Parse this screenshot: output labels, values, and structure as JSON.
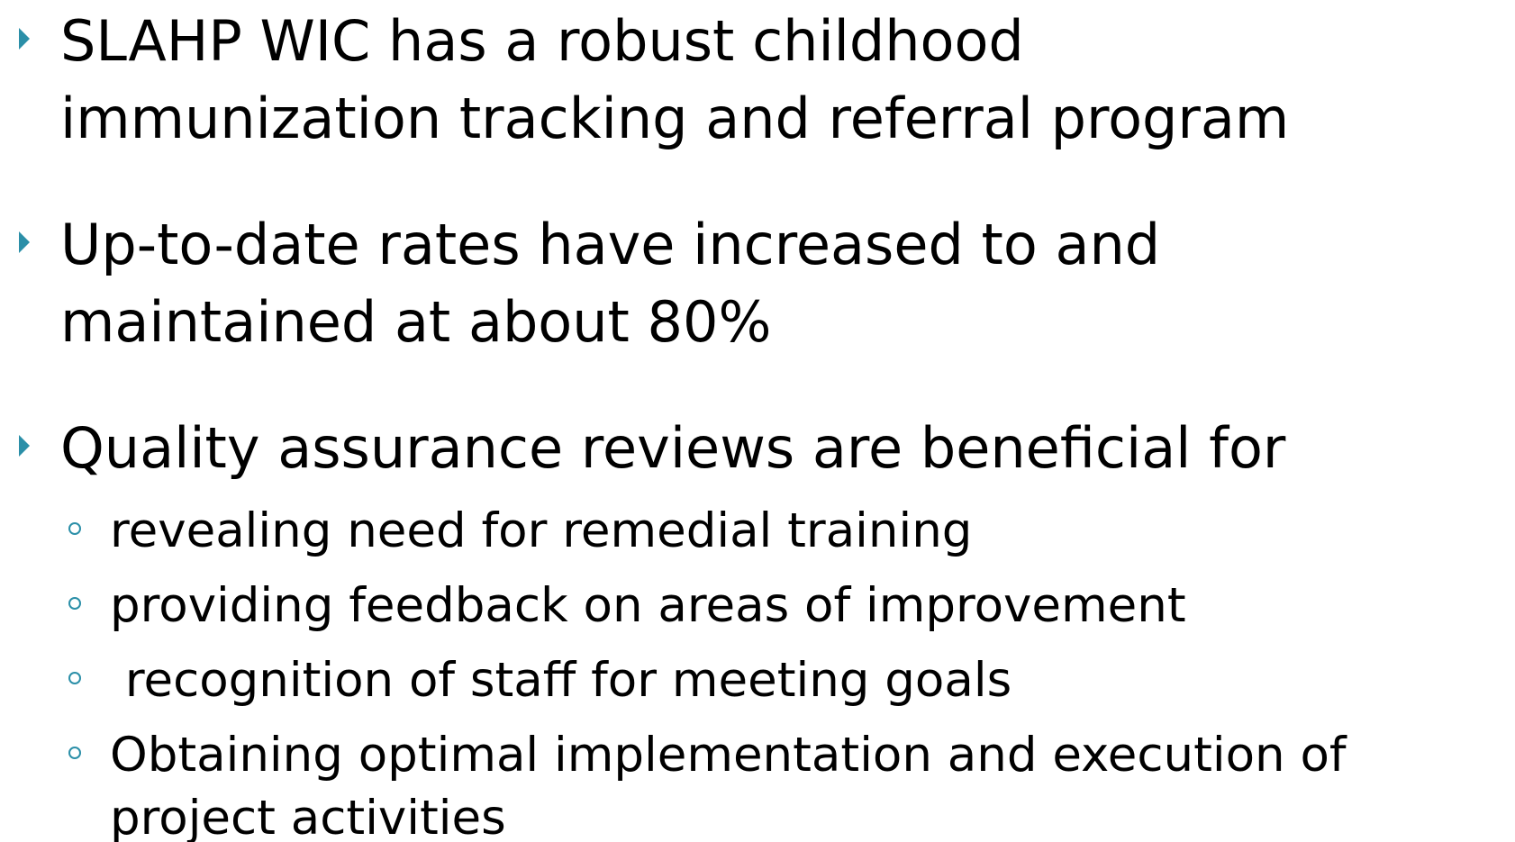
{
  "bullets": [
    {
      "lines": [
        "SLAHP WIC has a robust childhood",
        "immunization tracking and referral program"
      ]
    },
    {
      "lines": [
        "Up-to-date rates have increased to and",
        "maintained at about 80%"
      ]
    },
    {
      "lines": [
        "Quality assurance reviews are beneficial for"
      ],
      "sub_bullets": [
        {
          "lines": [
            "revealing need for remedial training"
          ]
        },
        {
          "lines": [
            "providing feedback on areas of improvement"
          ]
        },
        {
          "lines": [
            " recognition of staff for meeting goals"
          ]
        },
        {
          "lines": [
            "Obtaining optimal implementation and execution of",
            "project activities"
          ]
        }
      ]
    }
  ]
}
